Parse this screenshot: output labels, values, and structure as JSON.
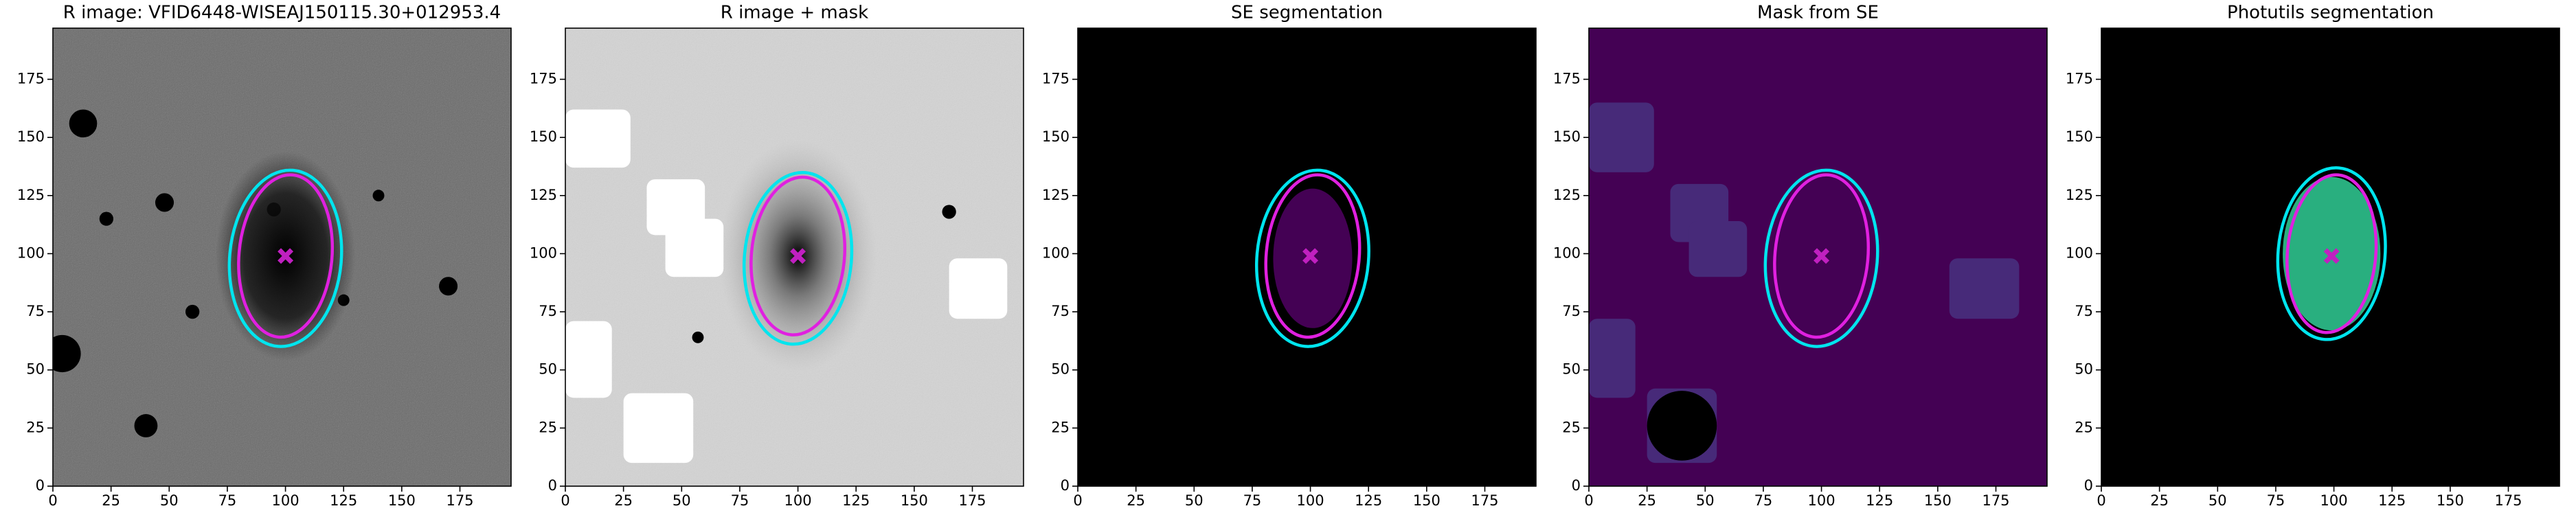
{
  "chart_data": [
    {
      "type": "image",
      "title": "R image: VFID6448-WISEAJ150115.30+012953.4",
      "background": "#6a6a6a",
      "xlim": [
        0,
        197
      ],
      "ylim": [
        0,
        197
      ],
      "xticks": [
        0,
        25,
        50,
        75,
        100,
        125,
        150,
        175
      ],
      "yticks": [
        0,
        25,
        50,
        75,
        100,
        125,
        150,
        175
      ],
      "ellipses": [
        {
          "color": "#00e5ee",
          "x": 100,
          "y": 98,
          "rx": 24,
          "ry": 38,
          "angle": 5
        },
        {
          "color": "#e020e0",
          "x": 100,
          "y": 99,
          "rx": 20,
          "ry": 35,
          "angle": 5
        }
      ],
      "marker": {
        "color": "#c020c0",
        "x": 100,
        "y": 99
      }
    },
    {
      "type": "image",
      "title": "R image + mask",
      "background": "#d4d4d4",
      "xlim": [
        0,
        197
      ],
      "ylim": [
        0,
        197
      ],
      "xticks": [
        0,
        25,
        50,
        75,
        100,
        125,
        150,
        175
      ],
      "yticks": [
        0,
        25,
        50,
        75,
        100,
        125,
        150,
        175
      ],
      "ellipses": [
        {
          "color": "#00e5ee",
          "x": 100,
          "y": 98,
          "rx": 23,
          "ry": 37,
          "angle": 5
        },
        {
          "color": "#e020e0",
          "x": 100,
          "y": 99,
          "rx": 20,
          "ry": 34,
          "angle": 5
        }
      ],
      "marker": {
        "color": "#c020c0",
        "x": 100,
        "y": 99
      }
    },
    {
      "type": "image",
      "title": "SE segmentation",
      "background": "#000000",
      "xlim": [
        0,
        197
      ],
      "ylim": [
        0,
        197
      ],
      "xticks": [
        0,
        25,
        50,
        75,
        100,
        125,
        150,
        175
      ],
      "yticks": [
        0,
        25,
        50,
        75,
        100,
        125,
        150,
        175
      ],
      "ellipses": [
        {
          "color": "#00e5ee",
          "x": 101,
          "y": 98,
          "rx": 24,
          "ry": 38,
          "angle": 5
        },
        {
          "color": "#e020e0",
          "x": 101,
          "y": 99,
          "rx": 20,
          "ry": 35,
          "angle": 5
        }
      ],
      "marker": {
        "color": "#c020c0",
        "x": 100,
        "y": 99
      }
    },
    {
      "type": "image",
      "title": "Mask from SE",
      "background": "#440154",
      "xlim": [
        0,
        197
      ],
      "ylim": [
        0,
        197
      ],
      "xticks": [
        0,
        25,
        50,
        75,
        100,
        125,
        150,
        175
      ],
      "yticks": [
        0,
        25,
        50,
        75,
        100,
        125,
        150,
        175
      ],
      "ellipses": [
        {
          "color": "#00e5ee",
          "x": 100,
          "y": 98,
          "rx": 24,
          "ry": 38,
          "angle": 5
        },
        {
          "color": "#e020e0",
          "x": 100,
          "y": 99,
          "rx": 20,
          "ry": 35,
          "angle": 5
        }
      ],
      "marker": {
        "color": "#c020c0",
        "x": 100,
        "y": 99
      }
    },
    {
      "type": "image",
      "title": "Photutils segmentation",
      "background": "#000000",
      "xlim": [
        0,
        197
      ],
      "ylim": [
        0,
        197
      ],
      "xticks": [
        0,
        25,
        50,
        75,
        100,
        125,
        150,
        175
      ],
      "yticks": [
        0,
        25,
        50,
        75,
        100,
        125,
        150,
        175
      ],
      "ellipses": [
        {
          "color": "#00e5ee",
          "x": 99,
          "y": 100,
          "rx": 23,
          "ry": 37,
          "angle": 5
        },
        {
          "color": "#e020e0",
          "x": 99,
          "y": 100,
          "rx": 19,
          "ry": 34,
          "angle": 5
        }
      ],
      "marker": {
        "color": "#c020c0",
        "x": 99,
        "y": 99
      }
    }
  ]
}
